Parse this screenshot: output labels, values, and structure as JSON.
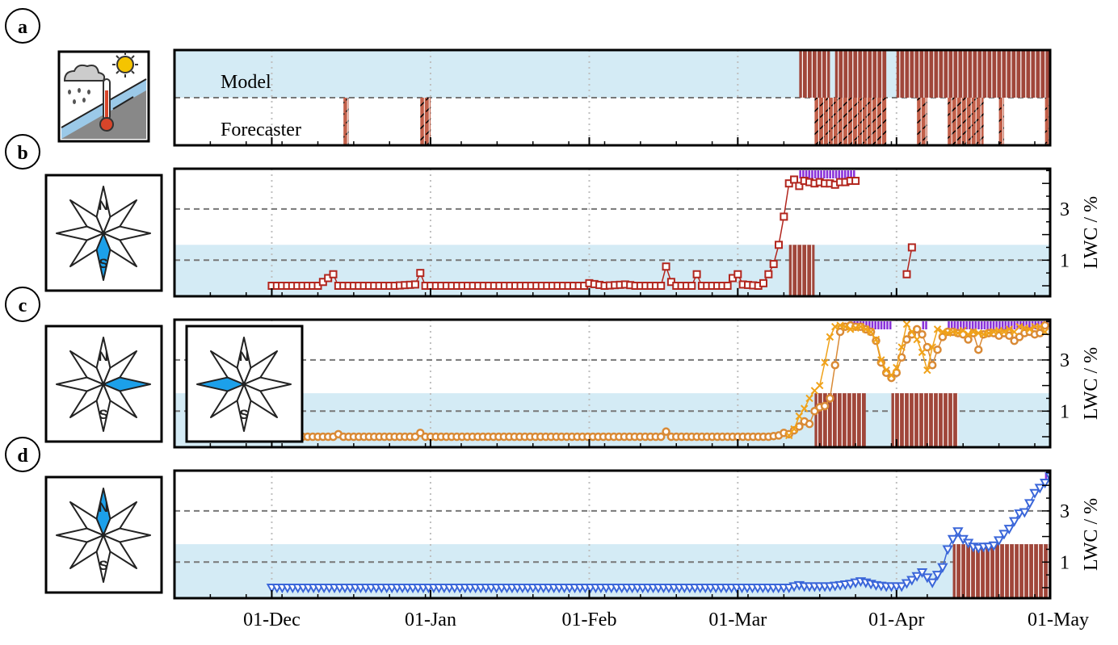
{
  "colors": {
    "band": "#d4ebf5",
    "stripe": "#a0463a",
    "stripe_dark": "#7c2f26",
    "purple": "#8a33d9",
    "series_b": "#b2261e",
    "series_c_circle": "#d98a36",
    "series_c_cross": "#f0a21a",
    "series_d": "#3a66d9",
    "rose_fill": "#1ca0ea",
    "grid": "#bfbfbf",
    "dash": "#777777"
  },
  "panels": [
    {
      "letter": "a",
      "icon": "weather-thermometer-icon",
      "labels": {
        "model": "Model",
        "forecaster": "Forecaster"
      }
    },
    {
      "letter": "b",
      "icon": "compass-rose-south-icon",
      "ylabel": "LWC / %"
    },
    {
      "letter": "c",
      "icon": "compass-rose-east-icon",
      "inset_icon": "compass-rose-west-icon",
      "ylabel": "LWC / %"
    },
    {
      "letter": "d",
      "icon": "compass-rose-north-icon",
      "ylabel": "LWC / %"
    }
  ],
  "rose_labels": {
    "north": "N",
    "south": "S"
  },
  "chart_data": [
    {
      "panel": "a",
      "type": "table",
      "title": "",
      "xlabel": "",
      "x_range": [
        "2019-11-12",
        "2020-05-01"
      ],
      "rows": [
        {
          "name": "Model",
          "warning_periods": [
            [
              "2020-03-13",
              "2020-03-19"
            ],
            [
              "2020-03-20",
              "2020-03-30"
            ],
            [
              "2020-04-01",
              "2020-05-01"
            ]
          ]
        },
        {
          "name": "Forecaster",
          "warning_periods": [
            [
              "2019-12-15",
              "2019-12-16"
            ],
            [
              "2019-12-30",
              "2020-01-01"
            ],
            [
              "2020-03-16",
              "2020-03-30"
            ],
            [
              "2020-04-05",
              "2020-04-07"
            ],
            [
              "2020-04-11",
              "2020-04-18"
            ],
            [
              "2020-04-21",
              "2020-04-22"
            ],
            [
              "2020-04-30",
              "2020-05-01"
            ]
          ]
        }
      ]
    },
    {
      "panel": "b",
      "type": "line",
      "xlabel": "",
      "ylabel": "LWC / %",
      "yticks": [
        1,
        3
      ],
      "ylim": [
        -0.1,
        5
      ],
      "band": [
        0,
        1.6
      ],
      "dashed_levels": [
        1,
        3
      ],
      "series": [
        {
          "points": [
            [
              "2019-12-01",
              0
            ],
            [
              "2019-12-10",
              0
            ],
            [
              "2019-12-13",
              0.45
            ],
            [
              "2019-12-14",
              0
            ],
            [
              "2019-12-25",
              0
            ],
            [
              "2019-12-29",
              0.05
            ],
            [
              "2019-12-30",
              0.5
            ],
            [
              "2019-12-31",
              0
            ],
            [
              "2020-01-31",
              0
            ],
            [
              "2020-02-01",
              0.1
            ],
            [
              "2020-02-04",
              0
            ],
            [
              "2020-02-08",
              0.05
            ],
            [
              "2020-02-10",
              0
            ],
            [
              "2020-02-15",
              0
            ],
            [
              "2020-02-16",
              0.75
            ],
            [
              "2020-02-17",
              0.15
            ],
            [
              "2020-02-18",
              0
            ],
            [
              "2020-02-21",
              0
            ],
            [
              "2020-02-22",
              0.45
            ],
            [
              "2020-02-23",
              0
            ],
            [
              "2020-02-28",
              0
            ],
            [
              "2020-02-29",
              0.3
            ],
            [
              "2020-03-01",
              0.45
            ],
            [
              "2020-03-02",
              0.05
            ],
            [
              "2020-03-05",
              0
            ],
            [
              "2020-03-06",
              0.1
            ],
            [
              "2020-03-07",
              0.45
            ],
            [
              "2020-03-08",
              0.85
            ],
            [
              "2020-03-09",
              1.6
            ],
            [
              "2020-03-10",
              2.7
            ],
            [
              "2020-03-11",
              4.0
            ],
            [
              "2020-03-12",
              4.15
            ],
            [
              "2020-03-13",
              3.9
            ],
            [
              "2020-03-14",
              4.1
            ],
            [
              "2020-03-15",
              4.05
            ],
            [
              "2020-03-16",
              4.0
            ],
            [
              "2020-03-17",
              4.05
            ],
            [
              "2020-03-18",
              4.0
            ],
            [
              "2020-03-19",
              4.0
            ],
            [
              "2020-03-20",
              3.95
            ],
            [
              "2020-03-21",
              4.05
            ],
            [
              "2020-03-22",
              4.05
            ],
            [
              "2020-03-23",
              4.1
            ],
            [
              "2020-03-24",
              4.1
            ]
          ]
        },
        {
          "points": [
            [
              "2020-04-03",
              0.45
            ],
            [
              "2020-04-04",
              1.5
            ]
          ]
        }
      ],
      "red_bars": [
        [
          "2020-03-11",
          "2020-03-16"
        ]
      ],
      "purple_ticks": [
        [
          "2020-03-13",
          "2020-03-24"
        ]
      ]
    },
    {
      "panel": "c",
      "type": "line",
      "xlabel": "",
      "ylabel": "LWC / %",
      "yticks": [
        1,
        3
      ],
      "ylim": [
        -0.1,
        5
      ],
      "band": [
        0,
        1.7
      ],
      "dashed_levels": [
        1,
        3
      ],
      "series": [
        {
          "marker": "circle",
          "points": [
            [
              "2019-12-01",
              0
            ],
            [
              "2019-12-13",
              0
            ],
            [
              "2019-12-14",
              0.1
            ],
            [
              "2019-12-15",
              0
            ],
            [
              "2019-12-29",
              0
            ],
            [
              "2019-12-30",
              0.15
            ],
            [
              "2019-12-31",
              0
            ],
            [
              "2020-02-15",
              0
            ],
            [
              "2020-02-16",
              0.2
            ],
            [
              "2020-02-17",
              0
            ],
            [
              "2020-03-07",
              0
            ],
            [
              "2020-03-09",
              0.05
            ],
            [
              "2020-03-10",
              0.15
            ],
            [
              "2020-03-11",
              0.1
            ],
            [
              "2020-03-13",
              0.4
            ],
            [
              "2020-03-14",
              0.6
            ],
            [
              "2020-03-15",
              0.5
            ],
            [
              "2020-03-16",
              1.0
            ],
            [
              "2020-03-17",
              1.15
            ],
            [
              "2020-03-18",
              1.2
            ],
            [
              "2020-03-19",
              1.5
            ],
            [
              "2020-03-20",
              2.8
            ],
            [
              "2020-03-21",
              4.1
            ],
            [
              "2020-03-22",
              4.3
            ],
            [
              "2020-03-23",
              4.35
            ],
            [
              "2020-03-24",
              4.3
            ],
            [
              "2020-03-25",
              4.3
            ],
            [
              "2020-03-26",
              4.2
            ],
            [
              "2020-03-27",
              4.1
            ],
            [
              "2020-03-28",
              3.75
            ],
            [
              "2020-03-29",
              2.9
            ],
            [
              "2020-03-30",
              2.5
            ],
            [
              "2020-03-31",
              2.3
            ],
            [
              "2020-04-01",
              2.5
            ],
            [
              "2020-04-02",
              3.1
            ],
            [
              "2020-04-03",
              3.8
            ],
            [
              "2020-04-04",
              4.0
            ],
            [
              "2020-04-05",
              4.2
            ],
            [
              "2020-04-06",
              4.0
            ],
            [
              "2020-04-07",
              3.5
            ],
            [
              "2020-04-08",
              2.8
            ],
            [
              "2020-04-09",
              3.4
            ],
            [
              "2020-04-10",
              3.9
            ],
            [
              "2020-04-11",
              4.1
            ],
            [
              "2020-04-12",
              4.1
            ],
            [
              "2020-04-13",
              4.05
            ],
            [
              "2020-04-14",
              4.0
            ],
            [
              "2020-04-15",
              3.8
            ],
            [
              "2020-04-16",
              4.05
            ],
            [
              "2020-04-17",
              3.4
            ],
            [
              "2020-04-18",
              4.0
            ],
            [
              "2020-04-19",
              4.05
            ],
            [
              "2020-04-20",
              4.05
            ],
            [
              "2020-04-21",
              3.95
            ],
            [
              "2020-04-22",
              4.05
            ],
            [
              "2020-04-23",
              3.95
            ],
            [
              "2020-04-24",
              3.75
            ],
            [
              "2020-04-25",
              3.9
            ],
            [
              "2020-04-26",
              4.05
            ],
            [
              "2020-04-27",
              4.1
            ],
            [
              "2020-04-28",
              4.0
            ],
            [
              "2020-04-29",
              4.05
            ],
            [
              "2020-04-30",
              4.35
            ]
          ]
        },
        {
          "marker": "cross",
          "points": [
            [
              "2020-03-11",
              0.05
            ],
            [
              "2020-03-12",
              0.3
            ],
            [
              "2020-03-13",
              0.8
            ],
            [
              "2020-03-14",
              1.1
            ],
            [
              "2020-03-15",
              1.5
            ],
            [
              "2020-03-16",
              1.8
            ],
            [
              "2020-03-17",
              2.0
            ],
            [
              "2020-03-18",
              2.9
            ],
            [
              "2020-03-19",
              3.9
            ],
            [
              "2020-03-20",
              4.3
            ],
            [
              "2020-03-21",
              4.35
            ],
            [
              "2020-03-22",
              4.3
            ],
            [
              "2020-03-23",
              4.2
            ],
            [
              "2020-03-24",
              4.25
            ],
            [
              "2020-03-25",
              4.3
            ],
            [
              "2020-03-26",
              4.2
            ],
            [
              "2020-03-27",
              4.1
            ],
            [
              "2020-03-28",
              3.8
            ],
            [
              "2020-03-29",
              3.0
            ],
            [
              "2020-03-30",
              2.6
            ],
            [
              "2020-03-31",
              2.4
            ],
            [
              "2020-04-01",
              2.7
            ],
            [
              "2020-04-02",
              3.5
            ],
            [
              "2020-04-03",
              4.4
            ],
            [
              "2020-04-04",
              4.1
            ],
            [
              "2020-04-05",
              3.8
            ],
            [
              "2020-04-06",
              3.3
            ],
            [
              "2020-04-07",
              2.6
            ],
            [
              "2020-04-08",
              3.5
            ],
            [
              "2020-04-09",
              4.2
            ],
            [
              "2020-04-10",
              4.1
            ],
            [
              "2020-04-11",
              4.05
            ],
            [
              "2020-04-12",
              4.1
            ],
            [
              "2020-04-13",
              4.05
            ],
            [
              "2020-04-14",
              4.15
            ],
            [
              "2020-04-15",
              4.0
            ],
            [
              "2020-04-16",
              4.1
            ],
            [
              "2020-04-17",
              4.05
            ],
            [
              "2020-04-18",
              4.0
            ],
            [
              "2020-04-19",
              4.05
            ],
            [
              "2020-04-20",
              4.1
            ],
            [
              "2020-04-21",
              4.15
            ],
            [
              "2020-04-22",
              4.1
            ],
            [
              "2020-04-23",
              4.2
            ],
            [
              "2020-04-24",
              4.1
            ],
            [
              "2020-04-25",
              4.3
            ],
            [
              "2020-04-26",
              4.25
            ],
            [
              "2020-04-27",
              4.2
            ],
            [
              "2020-04-28",
              4.3
            ],
            [
              "2020-04-29",
              4.3
            ],
            [
              "2020-04-30",
              4.1
            ]
          ]
        }
      ],
      "red_bars": [
        [
          "2020-03-16",
          "2020-03-26"
        ],
        [
          "2020-03-31",
          "2020-04-13"
        ]
      ],
      "purple_ticks": [
        [
          "2020-03-23",
          "2020-03-31"
        ],
        [
          "2020-04-06",
          "2020-04-07"
        ],
        [
          "2020-04-11",
          "2020-05-01"
        ]
      ]
    },
    {
      "panel": "d",
      "type": "line",
      "xlabel": "",
      "ylabel": "LWC / %",
      "yticks": [
        1,
        3
      ],
      "ylim": [
        -0.1,
        5
      ],
      "band": [
        0,
        1.7
      ],
      "dashed_levels": [
        1,
        3
      ],
      "series": [
        {
          "marker": "triangle-down",
          "points": [
            [
              "2019-12-01",
              0
            ],
            [
              "2020-03-11",
              0
            ],
            [
              "2020-03-12",
              0.05
            ],
            [
              "2020-03-13",
              0.1
            ],
            [
              "2020-03-14",
              0.05
            ],
            [
              "2020-03-17",
              0.05
            ],
            [
              "2020-03-19",
              0.05
            ],
            [
              "2020-03-21",
              0.1
            ],
            [
              "2020-03-23",
              0.15
            ],
            [
              "2020-03-25",
              0.25
            ],
            [
              "2020-03-26",
              0.2
            ],
            [
              "2020-03-28",
              0.1
            ],
            [
              "2020-03-30",
              0.05
            ],
            [
              "2020-04-02",
              0.05
            ],
            [
              "2020-04-04",
              0.3
            ],
            [
              "2020-04-06",
              0.6
            ],
            [
              "2020-04-08",
              0.2
            ],
            [
              "2020-04-10",
              0.8
            ],
            [
              "2020-04-11",
              1.5
            ],
            [
              "2020-04-12",
              1.9
            ],
            [
              "2020-04-13",
              2.2
            ],
            [
              "2020-04-14",
              1.9
            ],
            [
              "2020-04-15",
              1.75
            ],
            [
              "2020-04-16",
              1.6
            ],
            [
              "2020-04-17",
              1.55
            ],
            [
              "2020-04-18",
              1.6
            ],
            [
              "2020-04-19",
              1.6
            ],
            [
              "2020-04-20",
              1.65
            ],
            [
              "2020-04-21",
              1.85
            ],
            [
              "2020-04-22",
              2.1
            ],
            [
              "2020-04-23",
              2.3
            ],
            [
              "2020-04-24",
              2.6
            ],
            [
              "2020-04-25",
              2.9
            ],
            [
              "2020-04-26",
              2.95
            ],
            [
              "2020-04-27",
              3.3
            ],
            [
              "2020-04-28",
              3.7
            ],
            [
              "2020-04-29",
              3.9
            ],
            [
              "2020-04-30",
              4.1
            ],
            [
              "2020-05-01",
              4.35
            ]
          ]
        }
      ],
      "red_bars": [
        [
          "2020-04-12",
          "2020-05-01"
        ]
      ],
      "purple_ticks": [
        [
          "2020-04-30",
          "2020-05-01"
        ]
      ]
    }
  ],
  "x_axis": {
    "ticks": [
      "01-Dec",
      "01-Jan",
      "01-Feb",
      "01-Mar",
      "01-Apr",
      "01-May"
    ]
  }
}
